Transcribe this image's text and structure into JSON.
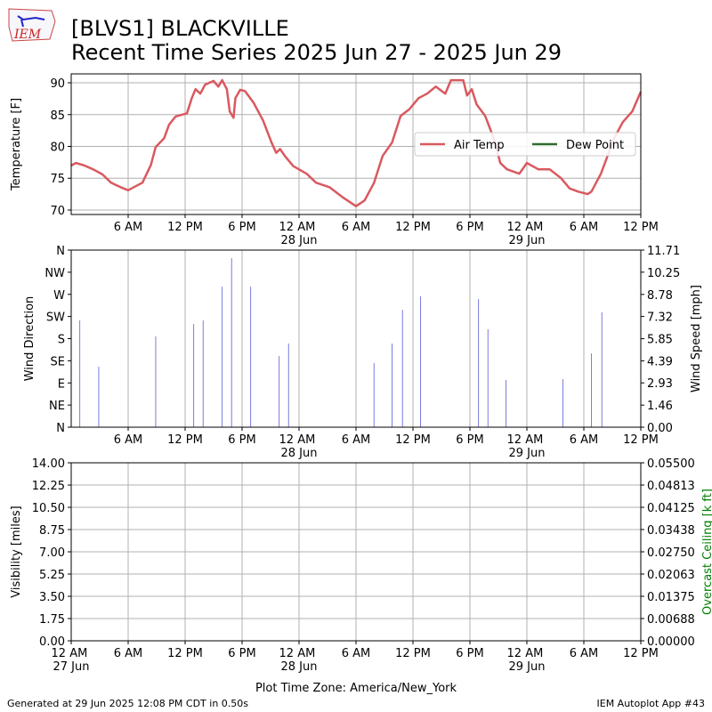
{
  "header": {
    "logo": "IEM",
    "title": "[BLVS1] BLACKVILLE",
    "subtitle": "Recent Time Series 2025 Jun 27 - 2025 Jun 29"
  },
  "footer": {
    "generated": "Generated at 29 Jun 2025 12:08 PM CDT in 0.50s",
    "app": "IEM Autoplot App #43"
  },
  "chart_data": [
    {
      "type": "line",
      "ylabel": "Temperature [F]",
      "grid": "both",
      "legend": "center right",
      "xlim": [
        0,
        60
      ],
      "ylim": [
        69.3,
        91.4
      ],
      "yticks": [
        70,
        75,
        80,
        85,
        90
      ],
      "xticks": [
        {
          "value": 6,
          "label": "6 AM"
        },
        {
          "value": 12,
          "label": "12 PM"
        },
        {
          "value": 18,
          "label": "6 PM"
        },
        {
          "value": 24,
          "label": "12 AM\n28 Jun"
        },
        {
          "value": 30,
          "label": "6 AM"
        },
        {
          "value": 36,
          "label": "12 PM"
        },
        {
          "value": 42,
          "label": "6 PM"
        },
        {
          "value": 48,
          "label": "12 AM\n29 Jun"
        },
        {
          "value": 54,
          "label": "6 AM"
        },
        {
          "value": 60,
          "label": "12 PM"
        }
      ],
      "x": [
        0,
        0.5,
        1.4,
        2.3,
        3.3,
        4.2,
        5.2,
        6.0,
        6.6,
        7.5,
        8.4,
        8.9,
        9.8,
        10.3,
        11.0,
        12.2,
        12.7,
        13.1,
        13.6,
        14.1,
        15.0,
        15.5,
        15.9,
        16.4,
        16.7,
        17.1,
        17.3,
        17.8,
        18.3,
        19.2,
        20.2,
        21.1,
        21.6,
        22.0,
        22.5,
        23.4,
        24.8,
        25.8,
        27.2,
        28.6,
        30.0,
        30.9,
        31.9,
        32.8,
        33.8,
        34.7,
        35.6,
        36.6,
        37.5,
        38.4,
        39.4,
        40.0,
        41.3,
        41.7,
        42.2,
        42.7,
        43.6,
        44.5,
        45.2,
        45.9,
        47.2,
        48.0,
        49.2,
        50.4,
        51.6,
        52.5,
        53.4,
        54.4,
        54.8,
        55.8,
        57.2,
        58.1,
        59.1,
        60.0
      ],
      "series": [
        {
          "name": "Air Temp",
          "color": "#d9595f",
          "values": [
            77.0,
            77.4,
            77.0,
            76.4,
            75.6,
            74.3,
            73.6,
            73.1,
            73.6,
            74.3,
            77.1,
            79.9,
            81.3,
            83.4,
            84.7,
            85.2,
            87.6,
            89.0,
            88.3,
            89.7,
            90.3,
            89.4,
            90.4,
            89.0,
            85.5,
            84.5,
            87.6,
            88.9,
            88.7,
            86.9,
            84.1,
            80.6,
            79.0,
            79.6,
            78.5,
            76.9,
            75.7,
            74.3,
            73.6,
            72.0,
            70.6,
            71.5,
            74.3,
            78.5,
            80.6,
            84.8,
            85.8,
            87.6,
            88.3,
            89.4,
            88.3,
            90.4,
            90.4,
            88.0,
            89.0,
            86.6,
            84.8,
            81.3,
            77.4,
            76.4,
            75.7,
            77.4,
            76.4,
            76.4,
            75.0,
            73.4,
            72.9,
            72.5,
            72.9,
            75.7,
            81.3,
            83.8,
            85.5,
            88.6
          ]
        },
        {
          "name": "Dew Point",
          "color": "#2e6b2e",
          "values": [
            null,
            null,
            null,
            null,
            null,
            null,
            null,
            null,
            null,
            null,
            null,
            null,
            null,
            null,
            null,
            null,
            null,
            null,
            null,
            null,
            null,
            null,
            null,
            null,
            null,
            null,
            null,
            null,
            null,
            null,
            null,
            null,
            null,
            null,
            null,
            null,
            null,
            null,
            null,
            null,
            null,
            null,
            null,
            null,
            null,
            null,
            null,
            null,
            null,
            null,
            null,
            null,
            null,
            null,
            null,
            null,
            null,
            null,
            null,
            null,
            null,
            null,
            null,
            null,
            null,
            null,
            null,
            null,
            null,
            null,
            null,
            null,
            null,
            null
          ]
        }
      ]
    },
    {
      "type": "bar",
      "ylabel": "Wind Direction",
      "y2label": "Wind Speed [mph]",
      "grid": "x",
      "xlim": [
        0,
        60
      ],
      "ylim": [
        0,
        360
      ],
      "y2lim": [
        0,
        11.71
      ],
      "yticks": [
        {
          "value": 0,
          "label": "N"
        },
        {
          "value": 45,
          "label": "NE"
        },
        {
          "value": 90,
          "label": "E"
        },
        {
          "value": 135,
          "label": "SE"
        },
        {
          "value": 180,
          "label": "S"
        },
        {
          "value": 225,
          "label": "SW"
        },
        {
          "value": 270,
          "label": "W"
        },
        {
          "value": 315,
          "label": "NW"
        },
        {
          "value": 360,
          "label": "N"
        }
      ],
      "y2ticks": [
        {
          "value": 0,
          "label": "0.00"
        },
        1.46,
        2.93,
        4.39,
        5.85,
        7.32,
        8.78,
        10.25,
        11.71
      ],
      "xticks": [
        {
          "value": 6,
          "label": "6 AM"
        },
        {
          "value": 12,
          "label": "12 PM"
        },
        {
          "value": 18,
          "label": "6 PM"
        },
        {
          "value": 24,
          "label": "12 AM\n28 Jun"
        },
        {
          "value": 30,
          "label": "6 AM"
        },
        {
          "value": 36,
          "label": "12 PM"
        },
        {
          "value": 42,
          "label": "6 PM"
        },
        {
          "value": 48,
          "label": "12 AM\n29 Jun"
        },
        {
          "value": 54,
          "label": "6 AM"
        },
        {
          "value": 60,
          "label": "12 PM"
        }
      ],
      "x": [
        0.9,
        2.9,
        8.9,
        12.9,
        13.9,
        15.9,
        16.9,
        18.9,
        21.9,
        22.9,
        31.9,
        33.8,
        34.9,
        36.8,
        42.9,
        43.9,
        45.8,
        51.8,
        54.8,
        55.9
      ],
      "series": [
        {
          "color": "#7b7be0",
          "axis": "y2",
          "values": [
            7.06,
            4.0,
            6.0,
            6.82,
            7.06,
            9.29,
            11.18,
            9.29,
            4.7,
            5.53,
            4.24,
            5.53,
            7.76,
            8.65,
            8.47,
            6.47,
            3.12,
            3.18,
            4.88,
            7.59
          ]
        }
      ]
    },
    {
      "type": "line",
      "ylabel": "Visibility [miles]",
      "y2label": "Overcast Ceiling [k ft]",
      "y2label_color": "#008000",
      "xlabel": "Plot Time Zone: America/New_York",
      "grid": "both",
      "xlim": [
        0,
        60
      ],
      "ylim": [
        0,
        14
      ],
      "y2lim": [
        0,
        0.055
      ],
      "yticks": [
        {
          "value": 0,
          "label": "0.00"
        },
        1.75,
        {
          "value": 3.5,
          "label": "3.50"
        },
        5.25,
        {
          "value": 7,
          "label": "7.00"
        },
        8.75,
        {
          "value": 10.5,
          "label": "10.50"
        },
        12.25,
        {
          "value": 14,
          "label": "14.00"
        }
      ],
      "y2ticks": [
        {
          "value": 0,
          "label": "0.00000"
        },
        0.00688,
        0.01375,
        0.02063,
        {
          "value": 0.0275,
          "label": "0.02750"
        },
        0.03438,
        0.04125,
        0.04813,
        {
          "value": 0.055,
          "label": "0.05500"
        }
      ],
      "xticks": [
        {
          "value": 0,
          "label": "12 AM\n27 Jun"
        },
        {
          "value": 6,
          "label": "6 AM"
        },
        {
          "value": 12,
          "label": "12 PM"
        },
        {
          "value": 18,
          "label": "6 PM"
        },
        {
          "value": 24,
          "label": "12 AM\n28 Jun"
        },
        {
          "value": 30,
          "label": "6 AM"
        },
        {
          "value": 36,
          "label": "12 PM"
        },
        {
          "value": 42,
          "label": "6 PM"
        },
        {
          "value": 48,
          "label": "12 AM\n29 Jun"
        },
        {
          "value": 54,
          "label": "6 AM"
        },
        {
          "value": 60,
          "label": "12 PM"
        }
      ]
    }
  ]
}
